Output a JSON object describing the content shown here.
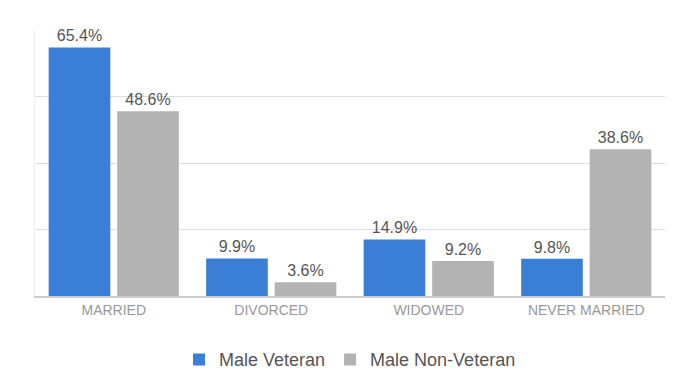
{
  "chart_data": {
    "type": "bar",
    "categories": [
      "MARRIED",
      "DIVORCED",
      "WIDOWED",
      "NEVER MARRIED"
    ],
    "series": [
      {
        "name": "Male Veteran",
        "color": "#3a7fd5",
        "values": [
          65.4,
          9.9,
          14.9,
          9.8
        ],
        "value_labels": [
          "65.4%",
          "9.9%",
          "14.9%",
          "9.8%"
        ]
      },
      {
        "name": "Male Non-Veteran",
        "color": "#b3b3b3",
        "values": [
          48.6,
          3.6,
          9.2,
          38.6
        ],
        "value_labels": [
          "48.6%",
          "3.6%",
          "9.2%",
          "38.6%"
        ]
      }
    ],
    "ylim": [
      0,
      70
    ],
    "yticks": [
      0,
      17.5,
      35,
      52.5
    ],
    "grid": true,
    "legend": "bottom",
    "data_labels": true,
    "tick_labels": "x"
  }
}
